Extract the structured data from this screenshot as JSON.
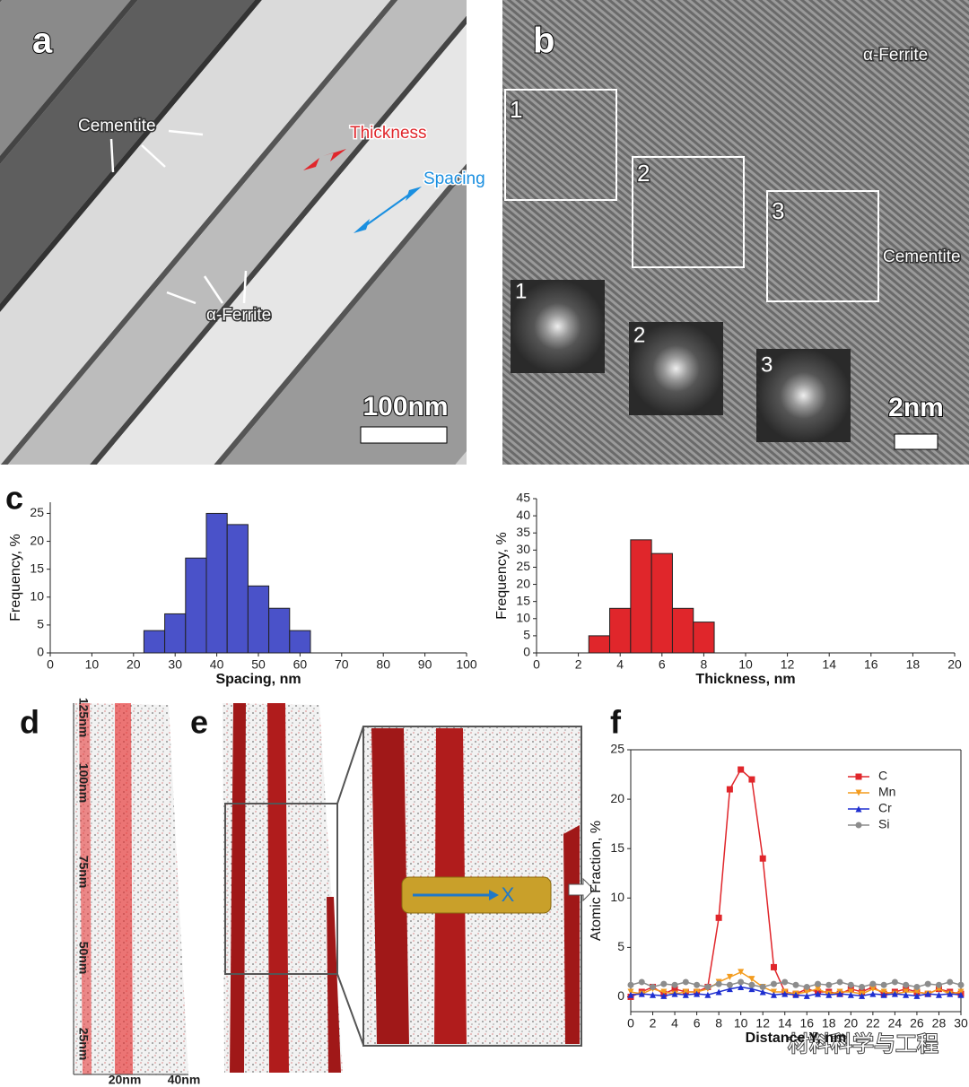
{
  "panel_a": {
    "label": "a",
    "annotations": [
      "Cementite",
      "Thickness",
      "Spacing",
      "α-Ferrite"
    ],
    "scale_bar": "100nm"
  },
  "panel_b": {
    "label": "b",
    "phases": [
      "α-Ferrite",
      "Cementite"
    ],
    "regions": [
      "1",
      "2",
      "3"
    ],
    "fft_insets": [
      "1",
      "2",
      "3"
    ],
    "scale_bar": "2nm"
  },
  "panel_c": {
    "label": "c"
  },
  "panel_d": {
    "label": "d",
    "y_axis_labels": [
      "125nm",
      "100nm",
      "75nm",
      "50nm",
      "25nm"
    ],
    "x_axis_labels": [
      "20nm",
      "40nm"
    ]
  },
  "panel_e": {
    "label": "e",
    "marker": "X"
  },
  "panel_f": {
    "label": "f"
  },
  "watermark": "材料科学与工程",
  "chart_data": [
    {
      "type": "histogram",
      "xlabel": "Spacing, nm",
      "ylabel": "Frequency, %",
      "color": "#4a52c9",
      "bins": [
        22.5,
        27.5,
        32.5,
        37.5,
        42.5,
        47.5,
        52.5,
        57.5,
        62.5
      ],
      "values": [
        4,
        7,
        17,
        25,
        23,
        12,
        8,
        4
      ],
      "xlim": [
        0,
        100
      ],
      "xticks": [
        0,
        10,
        20,
        30,
        40,
        50,
        60,
        70,
        80,
        90,
        100
      ],
      "ylim": [
        0,
        27
      ],
      "yticks": [
        0,
        5,
        10,
        15,
        20,
        25
      ]
    },
    {
      "type": "histogram",
      "xlabel": "Thickness, nm",
      "ylabel": "Frequency, %",
      "color": "#e0262b",
      "bins": [
        2.5,
        3.5,
        4.5,
        5.5,
        6.5,
        7.5,
        8.5
      ],
      "values": [
        5,
        13,
        33,
        29,
        13,
        9
      ],
      "xlim": [
        0,
        20
      ],
      "xticks": [
        0,
        2,
        4,
        6,
        8,
        10,
        12,
        14,
        16,
        18,
        20
      ],
      "ylim": [
        0,
        45
      ],
      "yticks": [
        0,
        5,
        10,
        15,
        20,
        25,
        30,
        35,
        40,
        45
      ]
    },
    {
      "type": "line",
      "xlabel": "Distance Y, nm",
      "ylabel": "Atomic Fraction, %",
      "frame": true,
      "legend": "upper right",
      "x": [
        0,
        1,
        2,
        3,
        4,
        5,
        6,
        7,
        8,
        9,
        10,
        11,
        12,
        13,
        14,
        15,
        16,
        17,
        18,
        19,
        20,
        21,
        22,
        23,
        24,
        25,
        26,
        27,
        28,
        29,
        30
      ],
      "series": [
        {
          "name": "C",
          "color": "#e0262b",
          "marker": "square",
          "values": [
            0,
            0.5,
            1,
            0.3,
            0.8,
            0.5,
            0.5,
            1,
            8,
            21,
            23,
            22,
            14,
            3,
            0.5,
            0.3,
            0.8,
            0.5,
            0.5,
            0.3,
            0.8,
            0.5,
            1,
            0.3,
            0.5,
            0.8,
            0.5,
            0.3,
            0.8,
            0.5,
            0.3
          ]
        },
        {
          "name": "Mn",
          "color": "#f39c1f",
          "marker": "triangle-down",
          "values": [
            0.5,
            0.3,
            0.8,
            0.5,
            0.3,
            0.5,
            0.5,
            0.8,
            1.5,
            2,
            2.5,
            1.8,
            1,
            0.5,
            0.5,
            0.3,
            0.5,
            0.8,
            0.3,
            0.5,
            0.5,
            0.3,
            0.8,
            0.5,
            0.3,
            0.5,
            0.5,
            0.3,
            0.8,
            0.3,
            0.5
          ]
        },
        {
          "name": "Cr",
          "color": "#1f2fd0",
          "marker": "triangle",
          "values": [
            0.2,
            0.3,
            0.2,
            0.1,
            0.3,
            0.2,
            0.3,
            0.2,
            0.5,
            0.8,
            1,
            0.8,
            0.5,
            0.2,
            0.3,
            0.2,
            0.1,
            0.3,
            0.2,
            0.3,
            0.2,
            0.1,
            0.3,
            0.2,
            0.3,
            0.2,
            0.1,
            0.3,
            0.2,
            0.3,
            0.2
          ]
        },
        {
          "name": "Si",
          "color": "#8c8c8c",
          "marker": "circle",
          "values": [
            1.2,
            1.5,
            1,
            1.3,
            1.2,
            1.5,
            1.2,
            1,
            1.3,
            1.2,
            1.5,
            1.2,
            1,
            1.3,
            1.5,
            1.2,
            1,
            1.3,
            1.2,
            1.5,
            1.2,
            1,
            1.3,
            1.2,
            1.5,
            1.2,
            1,
            1.3,
            1.2,
            1.5,
            1.2
          ]
        }
      ],
      "xlim": [
        0,
        30
      ],
      "xticks": [
        0,
        2,
        4,
        6,
        8,
        10,
        12,
        14,
        16,
        18,
        20,
        22,
        24,
        26,
        28,
        30
      ],
      "ylim": [
        -1.5,
        25
      ],
      "yticks": [
        0,
        5,
        10,
        15,
        20,
        25
      ]
    }
  ]
}
